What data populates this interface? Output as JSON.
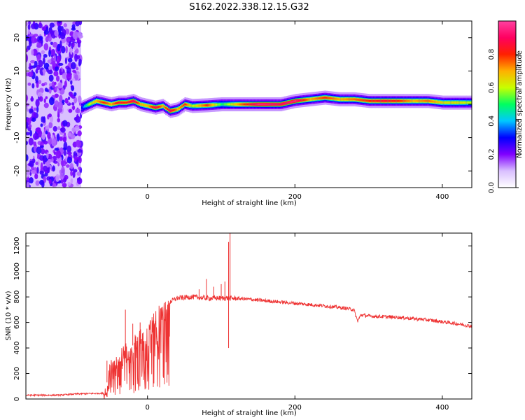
{
  "title": "S162.2022.338.12.15.G32",
  "chart_data": [
    {
      "type": "heatmap",
      "xlabel": "Height of straight line (km)",
      "ylabel": "Frequency (Hz)",
      "xlim": [
        -165,
        440
      ],
      "ylim": [
        -25,
        25
      ],
      "x_ticks": [
        0,
        200,
        400
      ],
      "y_ticks": [
        -20,
        -10,
        0,
        10,
        20
      ],
      "colorbar": {
        "label": "Normalized spectral amplitude",
        "range": [
          0,
          1
        ],
        "ticks": [
          "0.0",
          "0.2",
          "0.4",
          "0.6",
          "0.8"
        ],
        "colormap": [
          "#ffffff",
          "#d9bfff",
          "#8000ff",
          "#0000ff",
          "#00c8ff",
          "#00ff60",
          "#c8ff00",
          "#ffb000",
          "#ff2000",
          "#ff0060",
          "#ff40a0"
        ]
      },
      "noise_region_x": [
        -165,
        -90
      ],
      "ridge": {
        "x": [
          -90,
          -80,
          -70,
          -60,
          -50,
          -40,
          -30,
          -20,
          -10,
          0,
          10,
          20,
          30,
          40,
          50,
          60,
          80,
          100,
          120,
          150,
          180,
          200,
          220,
          240,
          260,
          280,
          300,
          320,
          340,
          360,
          380,
          400,
          420,
          440
        ],
        "freq": [
          -1,
          0,
          1,
          0.5,
          0,
          0.5,
          0.5,
          1,
          0,
          -0.5,
          -1,
          -0.5,
          -2,
          -1.5,
          0,
          -0.5,
          -0.3,
          0,
          0,
          0,
          0,
          1,
          1.5,
          2,
          1.5,
          1.5,
          1,
          1,
          1,
          1,
          1,
          0.5,
          0.5,
          0.5
        ],
        "level": [
          0.3,
          0.6,
          0.7,
          0.8,
          0.7,
          0.85,
          0.8,
          0.9,
          0.7,
          0.7,
          0.9,
          0.7,
          0.9,
          0.7,
          0.8,
          0.6,
          0.8,
          0.5,
          0.7,
          0.95,
          0.9,
          0.95,
          0.7,
          0.8,
          0.7,
          0.75,
          0.8,
          0.85,
          0.8,
          0.7,
          0.75,
          0.65,
          0.65,
          0.6
        ]
      }
    },
    {
      "type": "line",
      "xlabel": "Height of straight line (km)",
      "ylabel": "SNR (10 * v/v)",
      "xlim": [
        -165,
        440
      ],
      "ylim": [
        0,
        1300
      ],
      "x_ticks": [
        0,
        200,
        400
      ],
      "y_ticks": [
        0,
        200,
        400,
        600,
        800,
        1000,
        1200
      ],
      "color": "#ee3333",
      "series": [
        {
          "x": [
            -165,
            -120,
            -95,
            -60,
            -55,
            -50,
            -40,
            -30,
            -20,
            -10,
            0,
            10,
            20,
            30,
            40,
            60,
            80,
            100,
            110,
            130,
            160,
            200,
            240,
            270,
            280,
            285,
            290,
            300,
            340,
            380,
            420,
            440
          ],
          "y": [
            30,
            30,
            40,
            45,
            130,
            220,
            300,
            360,
            420,
            480,
            540,
            620,
            700,
            760,
            790,
            800,
            790,
            790,
            790,
            785,
            770,
            750,
            730,
            710,
            700,
            610,
            660,
            650,
            640,
            620,
            590,
            570
          ],
          "spikes": [
            {
              "x": -55,
              "y": 300
            },
            {
              "x": -30,
              "y": 700
            },
            {
              "x": -20,
              "y": 590
            },
            {
              "x": -10,
              "y": 600
            },
            {
              "x": 70,
              "y": 860
            },
            {
              "x": 80,
              "y": 940
            },
            {
              "x": 90,
              "y": 880
            },
            {
              "x": 100,
              "y": 900
            },
            {
              "x": 105,
              "y": 920
            },
            {
              "x": 110,
              "y": 1230
            },
            {
              "x": 112,
              "y": 1300
            },
            {
              "x": 110,
              "y": 400
            }
          ]
        }
      ]
    }
  ]
}
